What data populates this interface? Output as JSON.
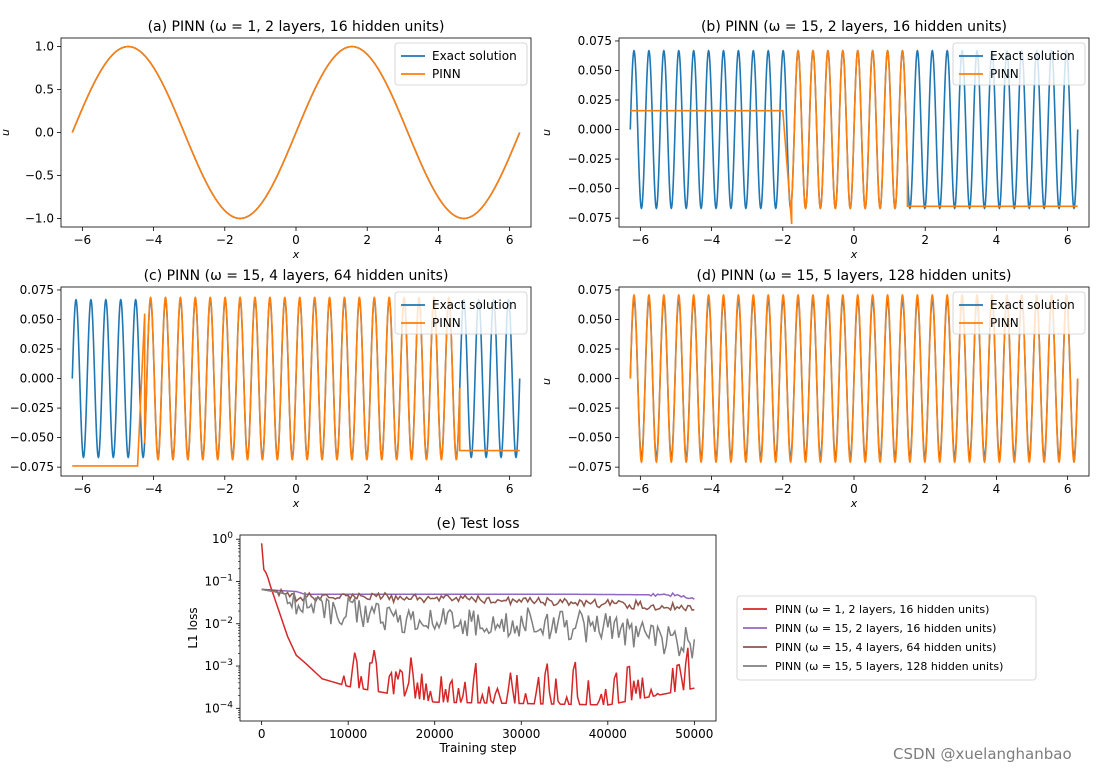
{
  "watermark": "CSDN @xuelanghanbao",
  "chart_data": [
    {
      "id": "a",
      "type": "line",
      "title": "(a) PINN (ω = 1, 2 layers, 16 hidden units)",
      "xlabel": "x",
      "ylabel": "u",
      "xlim": [
        -6.6,
        6.6
      ],
      "ylim": [
        -1.1,
        1.1
      ],
      "xticks": [
        -6,
        -4,
        -2,
        0,
        2,
        4,
        6
      ],
      "xtick_labels": [
        "−6",
        "−4",
        "−2",
        "0",
        "2",
        "4",
        "6"
      ],
      "yticks": [
        1.0,
        0.5,
        0.0,
        -0.5,
        -1.0
      ],
      "ytick_labels": [
        "1.0",
        "0.5",
        "0.0",
        "−0.5",
        "−1.0"
      ],
      "legend": [
        "Exact solution",
        "PINN"
      ],
      "legend_position": "top-right",
      "omega": 1,
      "amplitude": 1.0,
      "domain": [
        -6.2832,
        6.2832
      ],
      "series": [
        {
          "name": "Exact solution",
          "color": "#1f77b4",
          "function": "sin(omega*x)"
        },
        {
          "name": "PINN",
          "color": "#ff7f0e",
          "description": "matches exact solution",
          "segments": [
            {
              "x": [
                -6.2832,
                6.2832
              ],
              "mode": "fit"
            }
          ]
        }
      ]
    },
    {
      "id": "b",
      "type": "line",
      "title": "(b) PINN (ω = 15, 2 layers, 16 hidden units)",
      "xlabel": "x",
      "ylabel": "u",
      "xlim": [
        -6.6,
        6.6
      ],
      "ylim": [
        -0.0825,
        0.0775
      ],
      "xticks": [
        -6,
        -4,
        -2,
        0,
        2,
        4,
        6
      ],
      "xtick_labels": [
        "−6",
        "−4",
        "−2",
        "0",
        "2",
        "4",
        "6"
      ],
      "yticks": [
        0.075,
        0.05,
        0.025,
        0.0,
        -0.025,
        -0.05,
        -0.075
      ],
      "ytick_labels": [
        "0.075",
        "0.050",
        "0.025",
        "0.000",
        "−0.025",
        "−0.050",
        "−0.075"
      ],
      "legend": [
        "Exact solution",
        "PINN"
      ],
      "legend_position": "top-right",
      "omega": 15,
      "amplitude": 0.0667,
      "domain": [
        -6.2832,
        6.2832
      ],
      "series": [
        {
          "name": "Exact solution",
          "color": "#1f77b4",
          "function": "sin(omega*x)/omega"
        },
        {
          "name": "PINN",
          "color": "#ff7f0e",
          "segments": [
            {
              "x": [
                -6.2832,
                -2.0
              ],
              "mode": "const",
              "value": 0.016
            },
            {
              "x": [
                -2.0,
                -1.75
              ],
              "mode": "ramp",
              "from": 0.016,
              "to": -0.08
            },
            {
              "x": [
                -1.75,
                1.5
              ],
              "mode": "fit"
            },
            {
              "x": [
                1.5,
                6.2832
              ],
              "mode": "const",
              "value": -0.065
            }
          ]
        }
      ]
    },
    {
      "id": "c",
      "type": "line",
      "title": "(c) PINN (ω = 15, 4 layers, 64 hidden units)",
      "xlabel": "x",
      "ylabel": "u",
      "xlim": [
        -6.6,
        6.6
      ],
      "ylim": [
        -0.0825,
        0.0775
      ],
      "xticks": [
        -6,
        -4,
        -2,
        0,
        2,
        4,
        6
      ],
      "xtick_labels": [
        "−6",
        "−4",
        "−2",
        "0",
        "2",
        "4",
        "6"
      ],
      "yticks": [
        0.075,
        0.05,
        0.025,
        0.0,
        -0.025,
        -0.05,
        -0.075
      ],
      "ytick_labels": [
        "0.075",
        "0.050",
        "0.025",
        "0.000",
        "−0.025",
        "−0.050",
        "−0.075"
      ],
      "legend": [
        "Exact solution",
        "PINN"
      ],
      "legend_position": "top-right",
      "omega": 15,
      "amplitude": 0.0667,
      "domain": [
        -6.2832,
        6.2832
      ],
      "series": [
        {
          "name": "Exact solution",
          "color": "#1f77b4",
          "function": "sin(omega*x)/omega"
        },
        {
          "name": "PINN",
          "color": "#ff7f0e",
          "segments": [
            {
              "x": [
                -6.2832,
                -4.45
              ],
              "mode": "const",
              "value": -0.074
            },
            {
              "x": [
                -4.45,
                -4.25
              ],
              "mode": "ramp",
              "from": -0.074,
              "to": 0.055
            },
            {
              "x": [
                -4.25,
                4.6
              ],
              "mode": "fit",
              "scale": 1.03
            },
            {
              "x": [
                4.6,
                6.2832
              ],
              "mode": "const",
              "value": -0.061
            }
          ]
        }
      ]
    },
    {
      "id": "d",
      "type": "line",
      "title": "(d) PINN (ω = 15, 5 layers, 128 hidden units)",
      "xlabel": "x",
      "ylabel": "u",
      "xlim": [
        -6.6,
        6.6
      ],
      "ylim": [
        -0.0825,
        0.0775
      ],
      "xticks": [
        -6,
        -4,
        -2,
        0,
        2,
        4,
        6
      ],
      "xtick_labels": [
        "−6",
        "−4",
        "−2",
        "0",
        "2",
        "4",
        "6"
      ],
      "yticks": [
        0.075,
        0.05,
        0.025,
        0.0,
        -0.025,
        -0.05,
        -0.075
      ],
      "ytick_labels": [
        "0.075",
        "0.050",
        "0.025",
        "0.000",
        "−0.025",
        "−0.050",
        "−0.075"
      ],
      "legend": [
        "Exact solution",
        "PINN"
      ],
      "legend_position": "top-right",
      "omega": 15,
      "amplitude": 0.0667,
      "domain": [
        -6.2832,
        6.2832
      ],
      "series": [
        {
          "name": "Exact solution",
          "color": "#1f77b4",
          "function": "sin(omega*x)/omega"
        },
        {
          "name": "PINN",
          "color": "#ff7f0e",
          "segments": [
            {
              "x": [
                -6.2832,
                6.2832
              ],
              "mode": "fit",
              "scale": 1.06
            }
          ]
        }
      ]
    },
    {
      "id": "e",
      "type": "line",
      "title": "(e) Test loss",
      "xlabel": "Training step",
      "ylabel": "L1 loss",
      "yscale": "log",
      "xlim": [
        -2500,
        52500
      ],
      "ylim_log10": [
        -4.3,
        0.1
      ],
      "xticks": [
        0,
        10000,
        20000,
        30000,
        40000,
        50000
      ],
      "xtick_labels": [
        "0",
        "10000",
        "20000",
        "30000",
        "40000",
        "50000"
      ],
      "yticks_log10": [
        0,
        -1,
        -2,
        -3,
        -4
      ],
      "ytick_base": "10",
      "ytick_exponents": [
        "0",
        "−1",
        "−2",
        "−3",
        "−4"
      ],
      "legend_position": "outside-right",
      "series": [
        {
          "name": "PINN (ω = 1, 2 layers, 16 hidden units)",
          "color": "#d62728",
          "keypoints": [
            [
              0,
              0.8
            ],
            [
              200,
              0.2
            ],
            [
              600,
              0.15
            ],
            [
              1000,
              0.08
            ],
            [
              2000,
              0.02
            ],
            [
              3000,
              0.005
            ],
            [
              4000,
              0.0018
            ],
            [
              5000,
              0.0012
            ],
            [
              7000,
              0.0005
            ],
            [
              10000,
              0.00033
            ],
            [
              15000,
              0.00022
            ],
            [
              20000,
              0.00014
            ],
            [
              30000,
              0.00013
            ],
            [
              40000,
              0.00012
            ],
            [
              50000,
              0.0003
            ]
          ],
          "noise_from": 9000,
          "noise_to": 49500,
          "noise_log_amp": 1.1,
          "noise_direction": "up"
        },
        {
          "name": "PINN (ω = 15, 2 layers, 16 hidden units)",
          "color": "#9467bd",
          "keypoints": [
            [
              0,
              0.065
            ],
            [
              4000,
              0.058
            ],
            [
              5000,
              0.05
            ],
            [
              20000,
              0.05
            ],
            [
              35000,
              0.05
            ],
            [
              48000,
              0.048
            ],
            [
              50000,
              0.04
            ]
          ],
          "noise_from": 45000,
          "noise_to": 50000,
          "noise_log_amp": 0.05,
          "noise_direction": "both"
        },
        {
          "name": "PINN (ω = 15, 4 layers, 64 hidden units)",
          "color": "#8c564b",
          "keypoints": [
            [
              0,
              0.065
            ],
            [
              2000,
              0.06
            ],
            [
              4000,
              0.04
            ],
            [
              10000,
              0.045
            ],
            [
              20000,
              0.04
            ],
            [
              30000,
              0.035
            ],
            [
              40000,
              0.03
            ],
            [
              50000,
              0.023
            ]
          ],
          "noise_from": 2000,
          "noise_to": 50000,
          "noise_log_amp": 0.12,
          "noise_direction": "both"
        },
        {
          "name": "PINN (ω = 15, 5 layers, 128 hidden units)",
          "color": "#7f7f7f",
          "keypoints": [
            [
              0,
              0.065
            ],
            [
              3000,
              0.05
            ],
            [
              5000,
              0.025
            ],
            [
              10000,
              0.02
            ],
            [
              20000,
              0.012
            ],
            [
              30000,
              0.01
            ],
            [
              40000,
              0.008
            ],
            [
              50000,
              0.003
            ]
          ],
          "noise_from": 3000,
          "noise_to": 50000,
          "noise_log_amp": 0.45,
          "noise_direction": "both"
        }
      ]
    }
  ]
}
